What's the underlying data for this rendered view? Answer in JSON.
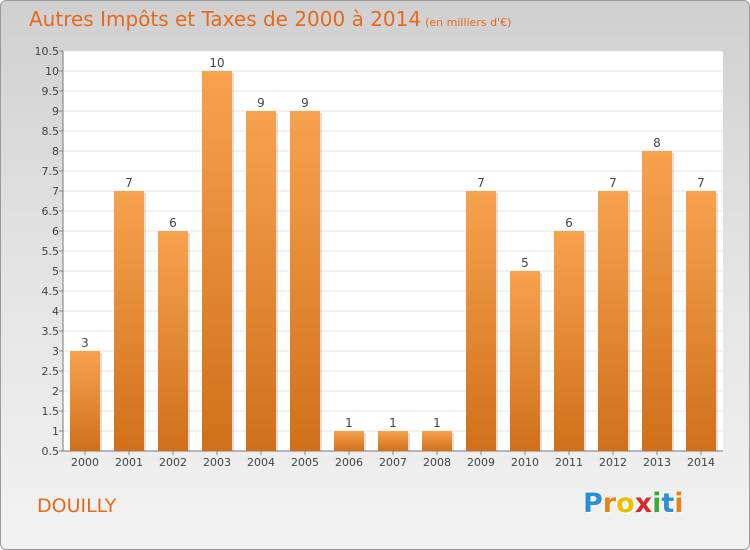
{
  "header": {
    "title": "Autres Impôts et Taxes de 2000 à 2014",
    "subtitle": "(en milliers d'€)"
  },
  "footer": {
    "commune": "DOUILLY",
    "logo": [
      "P",
      "r",
      "o",
      "x",
      "i",
      "t",
      "i"
    ]
  },
  "colors": {
    "accent": "#e46a1c",
    "bar_top": "#f7a24f",
    "bar_bottom": "#d0701a"
  },
  "chart_data": {
    "type": "bar",
    "categories": [
      "2000",
      "2001",
      "2002",
      "2003",
      "2004",
      "2005",
      "2006",
      "2007",
      "2008",
      "2009",
      "2010",
      "2011",
      "2012",
      "2013",
      "2014"
    ],
    "values": [
      3,
      7,
      6,
      10,
      9,
      9,
      1,
      1,
      1,
      7,
      5,
      6,
      7,
      8,
      7
    ],
    "ylim": [
      0.5,
      10.5
    ],
    "yticks": [
      "0.5",
      "1",
      "1.5",
      "2",
      "2.5",
      "3",
      "3.5",
      "4",
      "4.5",
      "5",
      "5.5",
      "6",
      "6.5",
      "7",
      "7.5",
      "8",
      "8.5",
      "9",
      "9.5",
      "10",
      "10.5"
    ],
    "grid": true
  }
}
